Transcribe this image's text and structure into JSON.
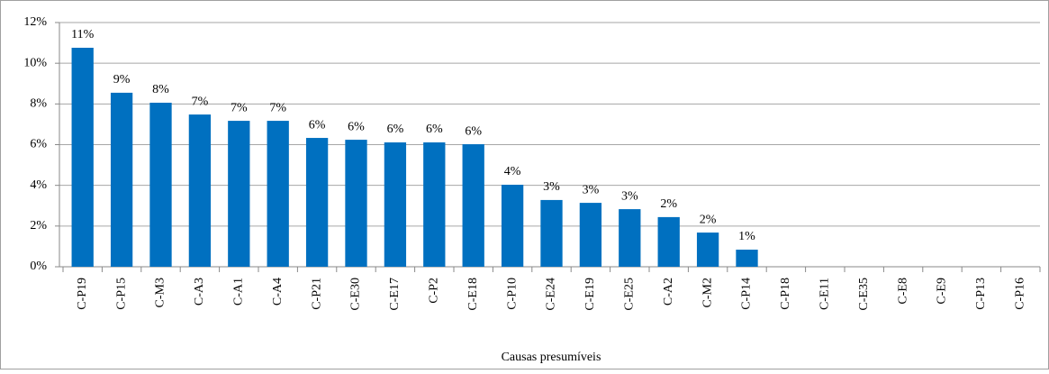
{
  "chart_data": {
    "type": "bar",
    "x_label": "Causas presumíveis",
    "categories": [
      "C-P19",
      "C-P15",
      "C-M3",
      "C-A3",
      "C-A1",
      "C-A4",
      "C-P21",
      "C-E30",
      "C-E17",
      "C-P2",
      "C-E18",
      "C-P10",
      "C-E24",
      "C-E19",
      "C-E25",
      "C-A2",
      "C-M2",
      "C-P14",
      "C-P18",
      "C-E11",
      "C-E35",
      "C-E8",
      "C-E9",
      "C-P13",
      "C-P16"
    ],
    "values": [
      10.76,
      8.55,
      8.06,
      7.48,
      7.17,
      7.17,
      6.33,
      6.24,
      6.11,
      6.11,
      6.02,
      4.03,
      3.28,
      3.14,
      2.83,
      2.44,
      1.68,
      0.84,
      0,
      0,
      0,
      0,
      0,
      0,
      0
    ],
    "value_labels": [
      "11%",
      "9%",
      "8%",
      "7%",
      "7%",
      "7%",
      "6%",
      "6%",
      "6%",
      "6%",
      "6%",
      "4%",
      "3%",
      "3%",
      "3%",
      "2%",
      "2%",
      "1%",
      null,
      null,
      null,
      null,
      null,
      null,
      null
    ],
    "color": "#0070c0",
    "ylim": [
      0,
      12
    ],
    "yticks": [
      {
        "value": 0,
        "label": "0%"
      },
      {
        "value": 2,
        "label": "2%"
      },
      {
        "value": 4,
        "label": "4%"
      },
      {
        "value": 6,
        "label": "6%"
      },
      {
        "value": 8,
        "label": "8%"
      },
      {
        "value": 10,
        "label": "10%"
      },
      {
        "value": 12,
        "label": "12%"
      }
    ],
    "grid": true
  }
}
